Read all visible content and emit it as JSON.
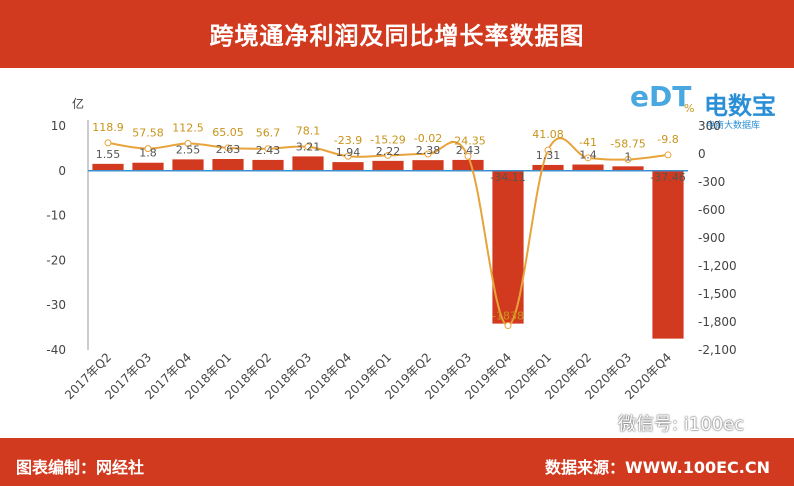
{
  "header": {
    "title": "跨境通净利润及同比增长率数据图"
  },
  "logo": {
    "mark": "eDT",
    "brand": "电数宝",
    "sub": "电商大数据库"
  },
  "footer": {
    "left": "图表编制：网经社",
    "right": "数据来源：WWW.100EC.CN"
  },
  "watermark": "微信号: i100ec",
  "colors": {
    "bar": "#d23a1f",
    "line": "#e8a33a",
    "banner": "#d23a1f"
  },
  "chart_data": {
    "type": "bar",
    "categories": [
      "2017年Q2",
      "2017年Q3",
      "2017年Q4",
      "2018年Q1",
      "2018年Q2",
      "2018年Q3",
      "2018年Q4",
      "2019年Q1",
      "2019年Q2",
      "2019年Q3",
      "2019年Q4",
      "2020年Q1",
      "2020年Q2",
      "2020年Q3",
      "2020年Q4"
    ],
    "series": [
      {
        "type": "bar",
        "axis": "left",
        "values": [
          1.55,
          1.8,
          2.55,
          2.63,
          2.43,
          3.21,
          1.94,
          2.22,
          2.38,
          2.43,
          -34.11,
          1.31,
          1.4,
          1,
          -37.46
        ],
        "labels": [
          "1.55",
          "1.8",
          "2.55",
          "2.63",
          "2.43",
          "3.21",
          "1.94",
          "2.22",
          "2.38",
          "2.43",
          "-34.11",
          "1.31",
          "1.4",
          "1",
          "-37.46"
        ]
      },
      {
        "type": "line",
        "axis": "right",
        "values": [
          118.9,
          57.58,
          112.5,
          65.05,
          56.7,
          78.1,
          -23.9,
          -15.29,
          -0.02,
          -24.35,
          -1838,
          41.08,
          -41,
          -58.75,
          -9.8
        ],
        "labels": [
          "118.9",
          "57.58",
          "112.5",
          "65.05",
          "56.7",
          "78.1",
          "-23.9",
          "-15.29",
          "-0.02",
          "-24.35",
          "-1838",
          "41.08",
          "-41",
          "-58.75",
          "-9.8"
        ]
      }
    ],
    "ylabel": "亿",
    "ylim": [
      -40,
      10
    ],
    "y_ticks": [
      "10",
      "0",
      "-10",
      "-20",
      "-30",
      "-40"
    ],
    "y2label": "%",
    "y2lim": [
      -2100,
      300
    ],
    "y2_ticks": [
      "300",
      "0",
      "-300",
      "-600",
      "-900",
      "-1,200",
      "-1,500",
      "-1,800",
      "-2,100"
    ]
  }
}
